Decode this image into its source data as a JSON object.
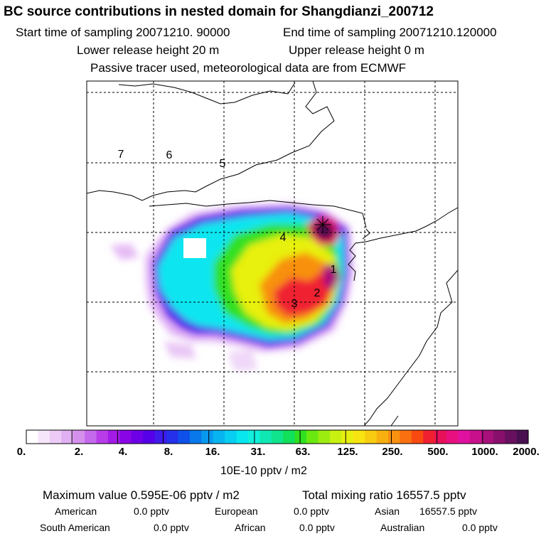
{
  "title": "BC  source contributions in nested domain for Shangdianzi_200712",
  "sampling": {
    "start": "Start time of sampling 20071210. 90000",
    "end": "End time of sampling 20071210.120000"
  },
  "release": {
    "lower": "Lower release height   20 m",
    "upper": "Upper release height    0 m"
  },
  "note": "Passive tracer used, meteorological data are from ECMWF",
  "map": {
    "region_labels": [
      "1",
      "2",
      "3",
      "4",
      "5",
      "6",
      "7"
    ],
    "station_marker": "station-marker"
  },
  "colorbar": {
    "tick_labels": [
      "0.",
      "2.",
      "4.",
      "8.",
      "16.",
      "31.",
      "63.",
      "125.",
      "250.",
      "500.",
      "1000.",
      "2000."
    ],
    "colors": [
      "#ffffff",
      "#f6e6fb",
      "#ecccf6",
      "#e0b0f2",
      "#d590ee",
      "#c569ec",
      "#b83ce8",
      "#a31be6",
      "#8a05e6",
      "#6d00e6",
      "#5500e8",
      "#3f1ae8",
      "#2430ea",
      "#1050ea",
      "#0878ea",
      "#0898ee",
      "#08b4f0",
      "#08cef2",
      "#08e6f0",
      "#10f0dc",
      "#10e8b4",
      "#10e48c",
      "#10e05a",
      "#30e020",
      "#6ae810",
      "#9cec10",
      "#c8f010",
      "#e8f010",
      "#f8e410",
      "#f8cc10",
      "#f8b010",
      "#f89010",
      "#f87010",
      "#f84a10",
      "#f02030",
      "#e8105a",
      "#e81080",
      "#e010a0",
      "#c8108c",
      "#a8107c",
      "#88106c",
      "#681060",
      "#481050"
    ],
    "unit": "10E-10 pptv / m2"
  },
  "summary": {
    "maximum": "Maximum value  0.595E-06 pptv / m2",
    "total": "Total mixing ratio    16557.5 pptv",
    "american_label": "American",
    "american_value": "0.0 pptv",
    "european_label": "European",
    "european_value": "0.0 pptv",
    "asian_label": "Asian",
    "asian_value": "16557.5 pptv",
    "south_american_label": "South American",
    "south_american_value": "0.0 pptv",
    "african_label": "African",
    "african_value": "0.0 pptv",
    "australian_label": "Australian",
    "australian_value": "0.0 pptv"
  }
}
